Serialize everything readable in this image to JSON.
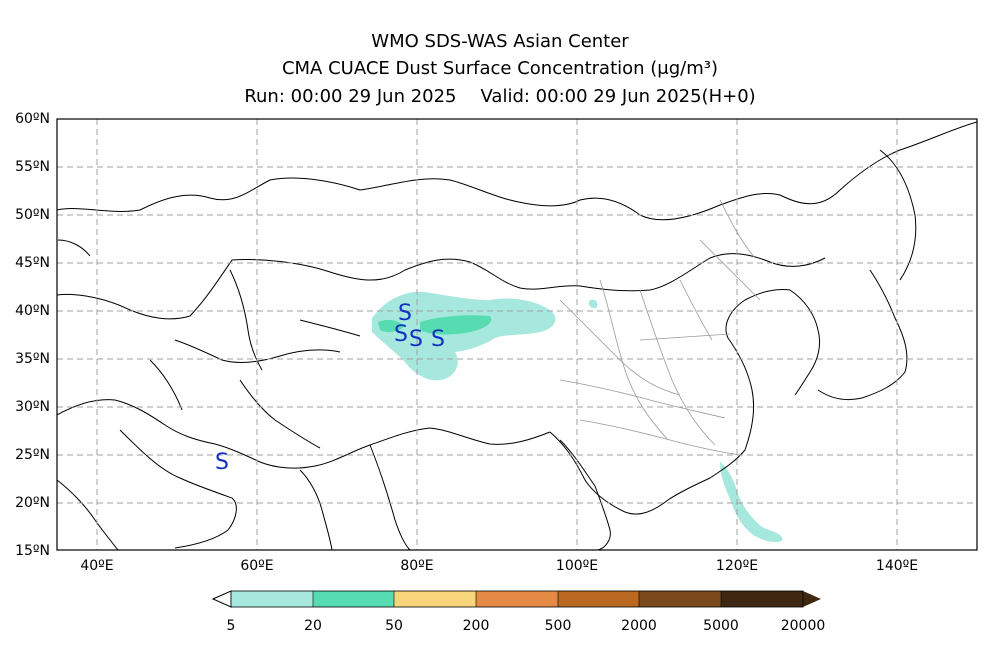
{
  "header": {
    "line1": "WMO SDS-WAS Asian Center",
    "line2": "CMA CUACE Dust Surface Concentration",
    "unit": "(μg/m³)",
    "run": "Run: 00:00 29 Jun 2025",
    "valid": "Valid: 00:00 29 Jun 2025(H+0)"
  },
  "map": {
    "lon_range": [
      35,
      150
    ],
    "lat_range": [
      15,
      60
    ],
    "lat_ticks": [
      "15ºN",
      "20ºN",
      "25ºN",
      "30ºN",
      "35ºN",
      "40ºN",
      "45ºN",
      "50ºN",
      "55ºN",
      "60ºN"
    ],
    "lon_ticks": [
      "40ºE",
      "60ºE",
      "80ºE",
      "100ºE",
      "120ºE",
      "140ºE"
    ],
    "station_marker": "S",
    "station_marker_color": "#1030c0"
  },
  "colorbar": {
    "labels": [
      "5",
      "20",
      "50",
      "200",
      "500",
      "2000",
      "5000",
      "20000"
    ],
    "colors": [
      "#a6e8de",
      "#56dcb0",
      "#f8d47a",
      "#e58a45",
      "#b8691f",
      "#7a4a1c",
      "#3f2812"
    ]
  }
}
